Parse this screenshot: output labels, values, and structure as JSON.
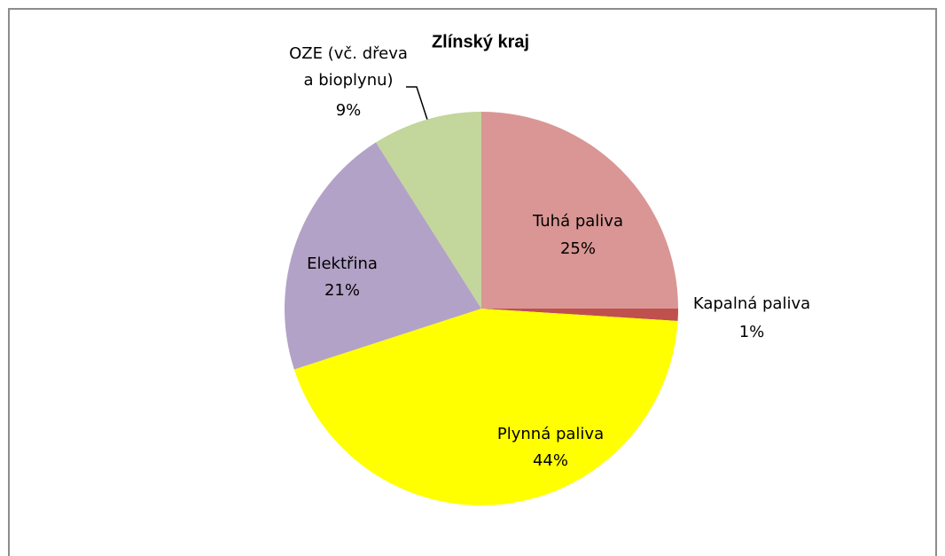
{
  "chart_data": {
    "type": "pie",
    "title": "Zlínský kraj",
    "categories": [
      "Tuhá paliva",
      "Kapalná paliva",
      "Plynná paliva",
      "Elektřina",
      "OZE (vč. dřeva a bioplynu)"
    ],
    "values": [
      25,
      1,
      44,
      21,
      9
    ],
    "value_labels": [
      "25%",
      "1%",
      "44%",
      "21%",
      "9%"
    ],
    "colors": [
      "#d99694",
      "#c0504d",
      "#ffff00",
      "#b3a2c7",
      "#c3d69b"
    ]
  }
}
